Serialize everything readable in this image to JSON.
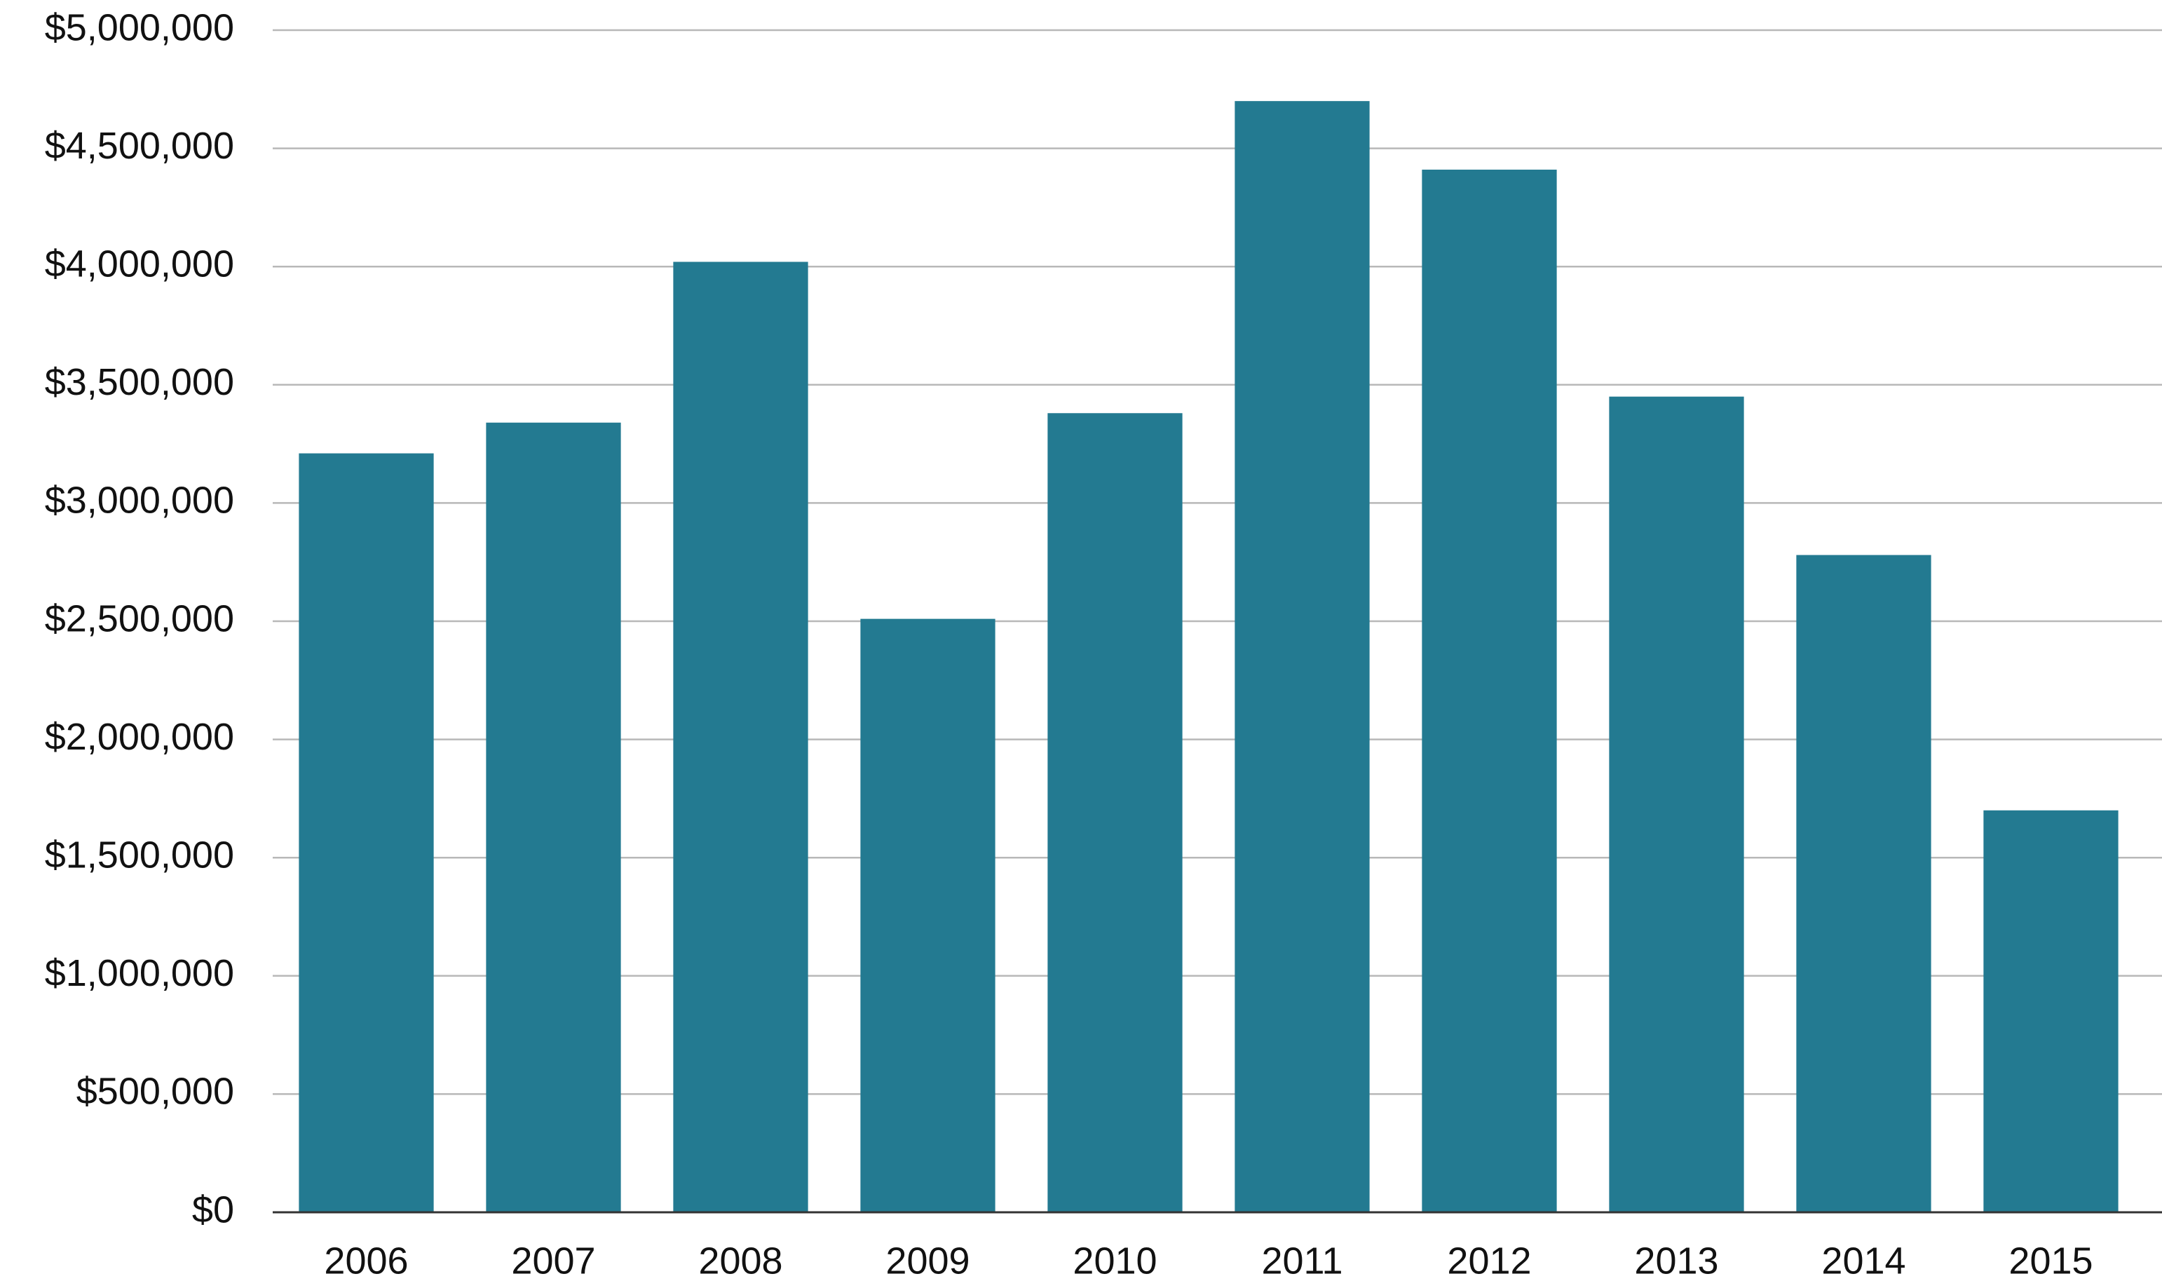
{
  "chart_data": {
    "type": "bar",
    "categories": [
      "2006",
      "2007",
      "2008",
      "2009",
      "2010",
      "2011",
      "2012",
      "2013",
      "2014",
      "2015"
    ],
    "values": [
      3210000,
      3340000,
      4020000,
      2510000,
      3380000,
      4700000,
      4410000,
      3450000,
      2780000,
      1700000
    ],
    "color": "#237a91",
    "ylim": [
      0,
      5000000
    ],
    "yticks": [
      {
        "value": 0,
        "label": "$0"
      },
      {
        "value": 500000,
        "label": "$500,000"
      },
      {
        "value": 1000000,
        "label": "$1,000,000"
      },
      {
        "value": 1500000,
        "label": "$1,500,000"
      },
      {
        "value": 2000000,
        "label": "$2,000,000"
      },
      {
        "value": 2500000,
        "label": "$2,500,000"
      },
      {
        "value": 3000000,
        "label": "$3,000,000"
      },
      {
        "value": 3500000,
        "label": "$3,500,000"
      },
      {
        "value": 4000000,
        "label": "$4,000,000"
      },
      {
        "value": 4500000,
        "label": "$4,500,000"
      },
      {
        "value": 5000000,
        "label": "$5,000,000"
      }
    ],
    "grid": true
  }
}
